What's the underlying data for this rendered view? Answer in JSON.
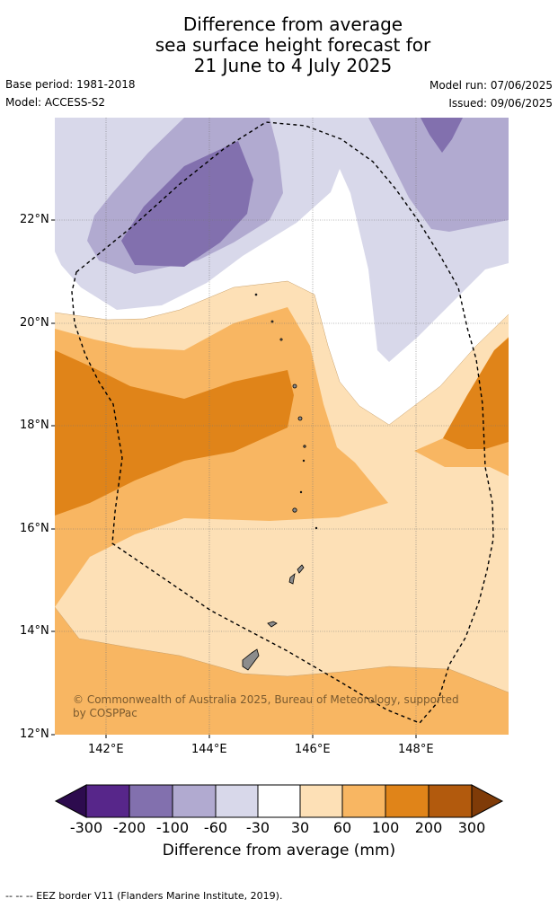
{
  "title": {
    "line1": "Difference from average",
    "line2": "sea surface height forecast for",
    "line3": "21 June to 4 July 2025"
  },
  "meta": {
    "base_period": "Base period: 1981-2018",
    "model": "Model: ACCESS-S2",
    "model_run": "Model run: 07/06/2025",
    "issued": "Issued: 09/06/2025"
  },
  "map": {
    "lat_ticks": [
      "22°N",
      "20°N",
      "18°N",
      "16°N",
      "14°N",
      "12°N"
    ],
    "lon_ticks": [
      "142°E",
      "144°E",
      "146°E",
      "148°E"
    ],
    "copyright": "© Commonwealth of Australia 2025, Bureau of Meteorology, supported by COSPPac",
    "land_color": "#8c8c8c",
    "eez_style": "dashed"
  },
  "colorbar": {
    "title": "Difference from average (mm)",
    "labels": [
      "-300",
      "-200",
      "-100",
      "-60",
      "-30",
      "30",
      "60",
      "100",
      "200",
      "300"
    ],
    "colors": [
      "#2d0b4e",
      "#57268a",
      "#8270ae",
      "#b1aad0",
      "#d8d8ea",
      "#ffffff",
      "#fde0b6",
      "#f8b662",
      "#e08419",
      "#b25a0d",
      "#7f3b08"
    ]
  },
  "footer": "--  --  -- EEZ border V11 (Flanders Marine Institute, 2019)."
}
